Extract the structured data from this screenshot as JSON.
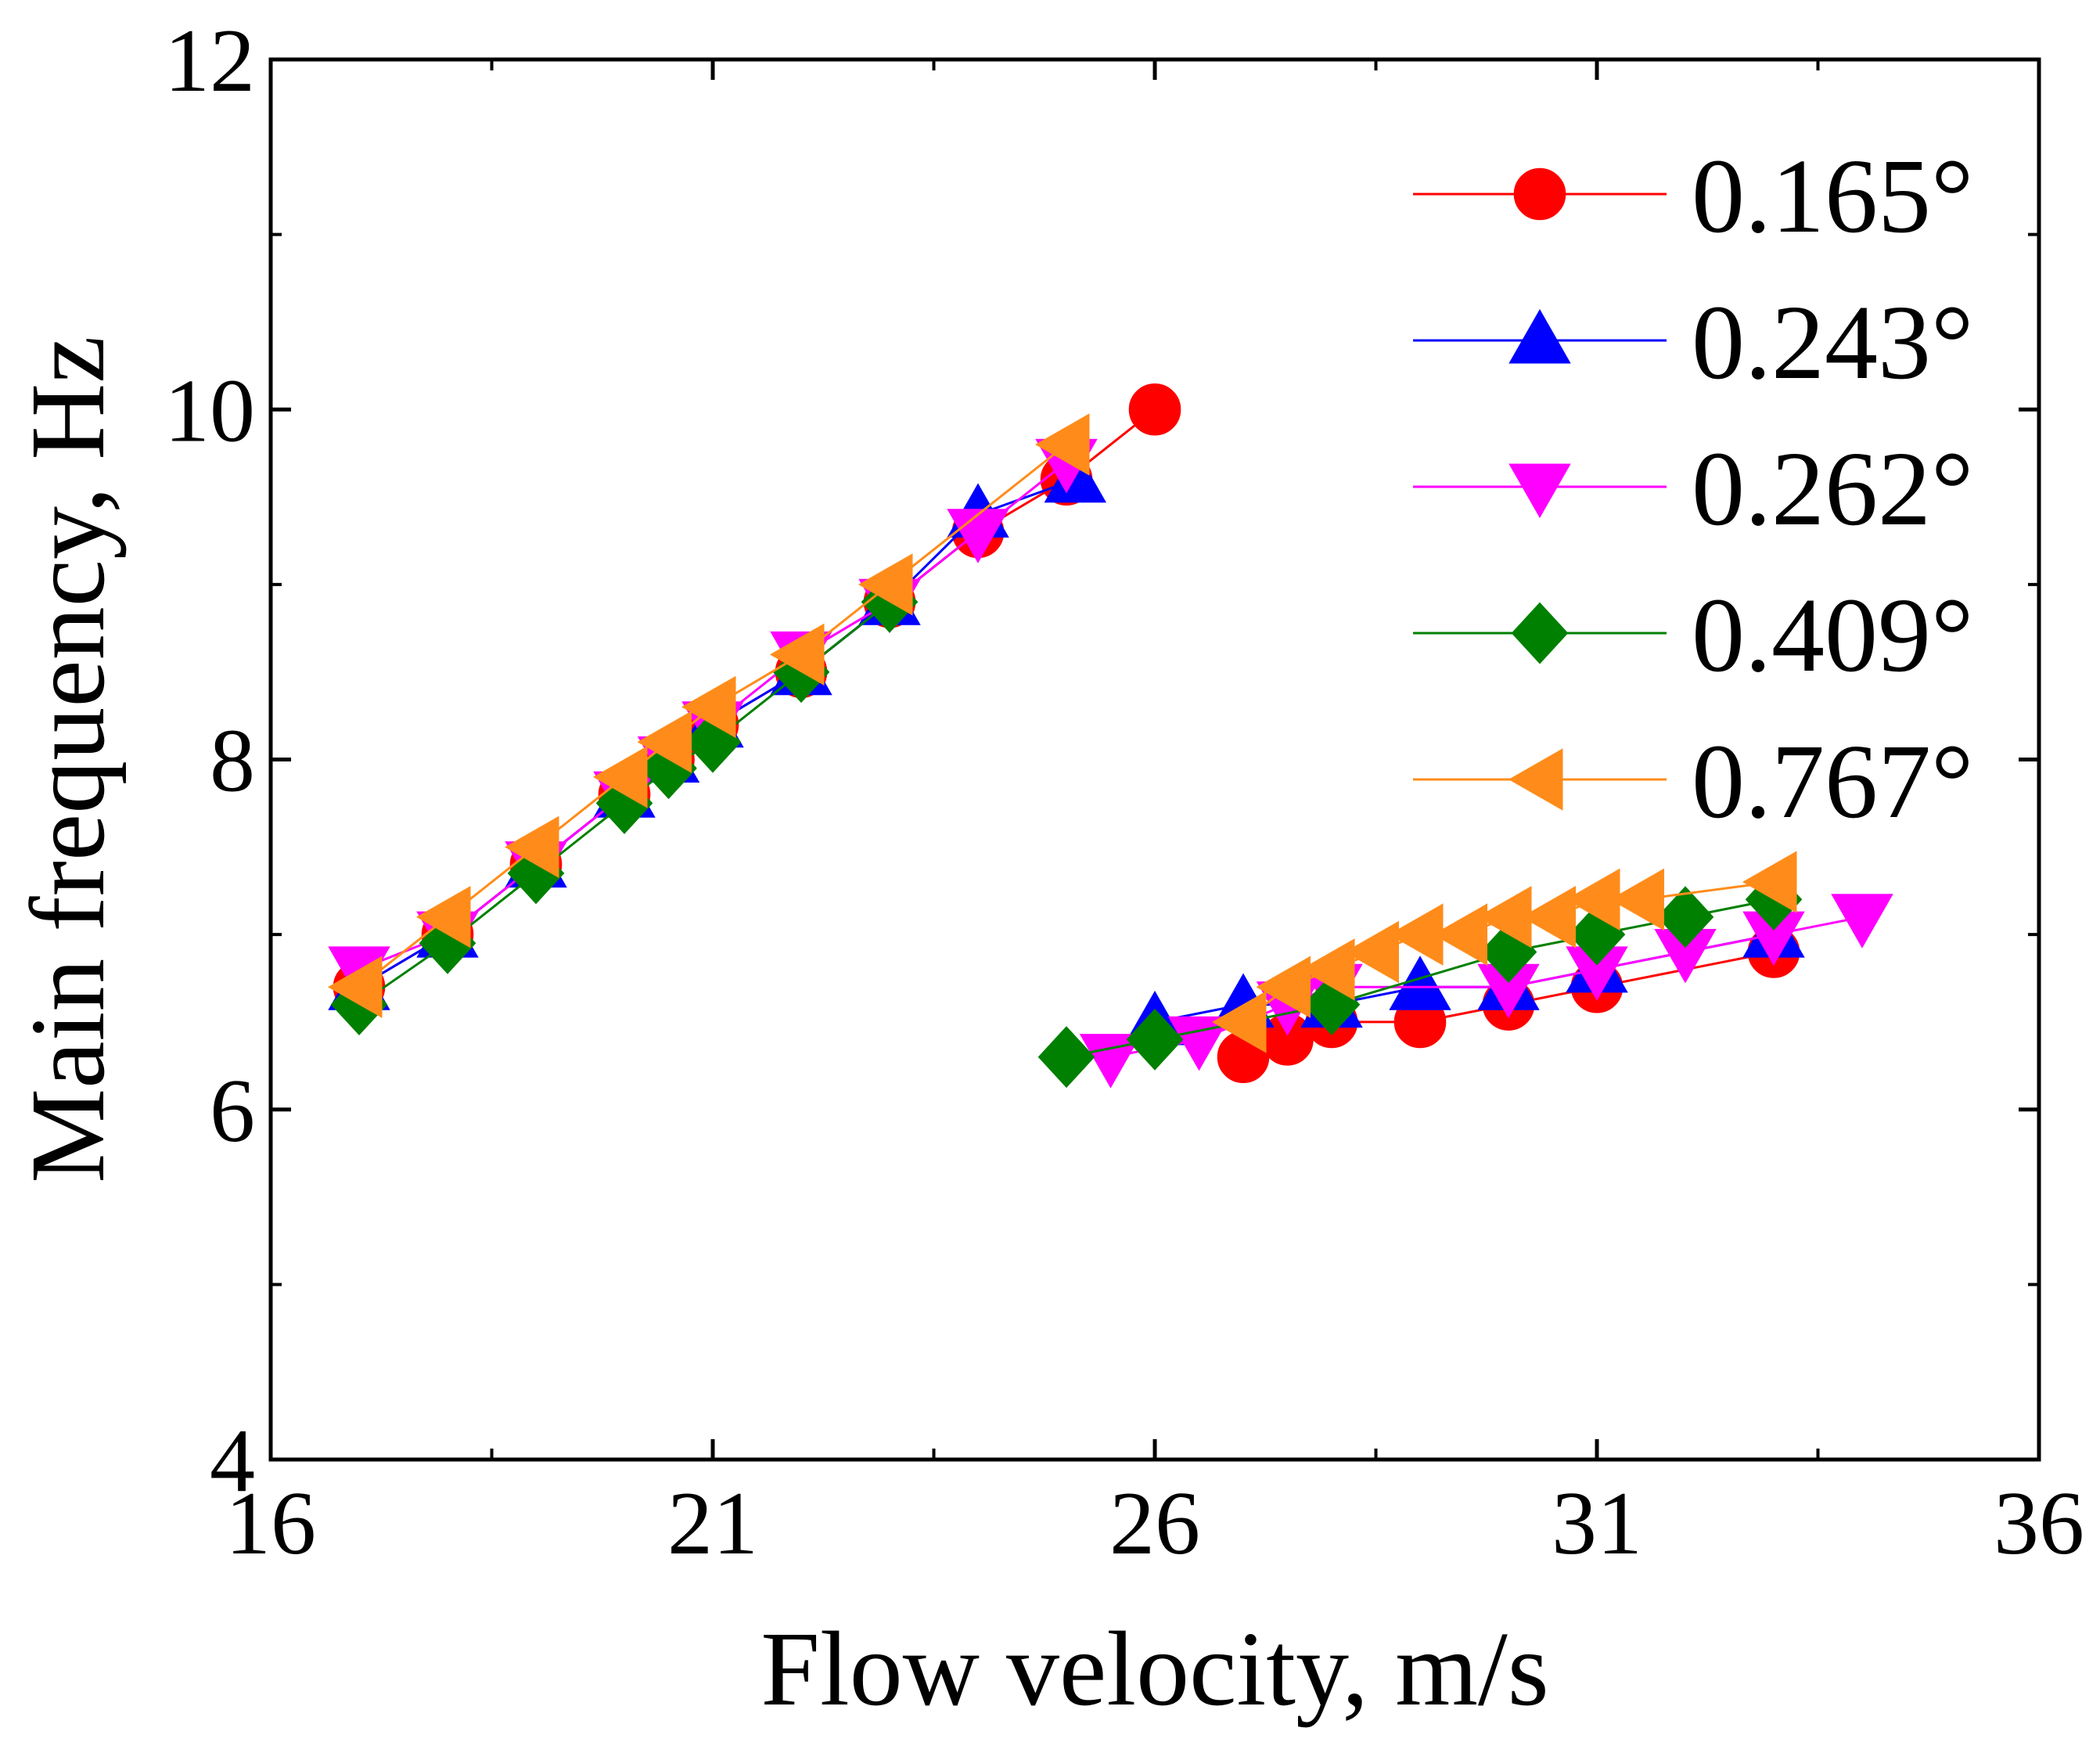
{
  "chart_data": {
    "type": "line",
    "title": "",
    "xlabel": "Flow velocity, m/s",
    "ylabel": "Main frequency, Hz",
    "xlim": [
      16,
      36
    ],
    "ylim": [
      4,
      12
    ],
    "x_ticks": [
      "16",
      "21",
      "26",
      "31",
      "36"
    ],
    "y_ticks": [
      "4",
      "6",
      "8",
      "10",
      "12"
    ],
    "grid": false,
    "legend_position": "top-right",
    "series": [
      {
        "name": "0.165°",
        "color": "#ff0000",
        "marker": "circle",
        "segments": [
          [
            [
              17,
              6.7
            ],
            [
              18,
              7.0
            ],
            [
              19,
              7.4
            ],
            [
              20,
              7.8
            ],
            [
              20.5,
              8.0
            ],
            [
              21,
              8.2
            ],
            [
              22,
              8.5
            ],
            [
              23,
              8.9
            ],
            [
              24,
              9.3
            ],
            [
              25,
              9.6
            ],
            [
              26,
              10.0
            ]
          ],
          [
            [
              27,
              6.3
            ],
            [
              27.5,
              6.4
            ],
            [
              28,
              6.5
            ],
            [
              29,
              6.5
            ],
            [
              30,
              6.6
            ],
            [
              31,
              6.7
            ],
            [
              33,
              6.9
            ]
          ]
        ]
      },
      {
        "name": "0.243°",
        "color": "#0000ff",
        "marker": "triangle-up",
        "segments": [
          [
            [
              17,
              6.7
            ],
            [
              18,
              7.0
            ],
            [
              19,
              7.4
            ],
            [
              20,
              7.8
            ],
            [
              20.5,
              8.0
            ],
            [
              21,
              8.2
            ],
            [
              22,
              8.5
            ],
            [
              23,
              8.9
            ],
            [
              24,
              9.4
            ],
            [
              25.1,
              9.6
            ]
          ],
          [
            [
              26,
              6.5
            ],
            [
              27,
              6.6
            ],
            [
              28,
              6.6
            ],
            [
              29,
              6.7
            ],
            [
              30,
              6.7
            ],
            [
              31,
              6.8
            ],
            [
              33,
              7.0
            ]
          ]
        ]
      },
      {
        "name": "0.262°",
        "color": "#ff00ff",
        "marker": "triangle-down",
        "segments": [
          [
            [
              17,
              6.8
            ],
            [
              18,
              7.0
            ],
            [
              19,
              7.4
            ],
            [
              20,
              7.8
            ],
            [
              20.5,
              8.0
            ],
            [
              21,
              8.2
            ],
            [
              22,
              8.6
            ],
            [
              23,
              8.9
            ],
            [
              24,
              9.3
            ],
            [
              25,
              9.7
            ]
          ],
          [
            [
              25.5,
              6.3
            ],
            [
              26.5,
              6.4
            ],
            [
              27.5,
              6.6
            ],
            [
              28,
              6.7
            ],
            [
              30,
              6.7
            ],
            [
              31,
              6.8
            ],
            [
              32,
              6.9
            ],
            [
              33,
              7.0
            ],
            [
              34,
              7.1
            ]
          ]
        ]
      },
      {
        "name": "0.409°",
        "color": "#008000",
        "marker": "diamond",
        "segments": [
          [
            [
              17,
              6.6
            ],
            [
              18,
              6.95
            ],
            [
              19,
              7.35
            ],
            [
              20,
              7.75
            ],
            [
              20.5,
              7.95
            ],
            [
              21,
              8.1
            ],
            [
              22,
              8.5
            ],
            [
              23,
              8.9
            ]
          ],
          [
            [
              25,
              6.3
            ],
            [
              26,
              6.4
            ],
            [
              28,
              6.6
            ],
            [
              30,
              6.9
            ],
            [
              31,
              7.0
            ],
            [
              32,
              7.1
            ],
            [
              33,
              7.2
            ]
          ]
        ]
      },
      {
        "name": "0.767°",
        "color": "#ff8c1a",
        "marker": "triangle-left",
        "segments": [
          [
            [
              17,
              6.7
            ],
            [
              18,
              7.1
            ],
            [
              19,
              7.5
            ],
            [
              20,
              7.9
            ],
            [
              20.5,
              8.1
            ],
            [
              21,
              8.3
            ],
            [
              22,
              8.6
            ],
            [
              23,
              9.0
            ],
            [
              25,
              9.8
            ]
          ],
          [
            [
              27,
              6.5
            ],
            [
              27.5,
              6.7
            ],
            [
              28,
              6.8
            ],
            [
              28.5,
              6.9
            ],
            [
              29,
              7.0
            ],
            [
              29.5,
              7.0
            ],
            [
              30,
              7.1
            ],
            [
              30.5,
              7.1
            ],
            [
              31,
              7.2
            ],
            [
              31.5,
              7.2
            ],
            [
              33,
              7.3
            ]
          ]
        ]
      }
    ]
  }
}
